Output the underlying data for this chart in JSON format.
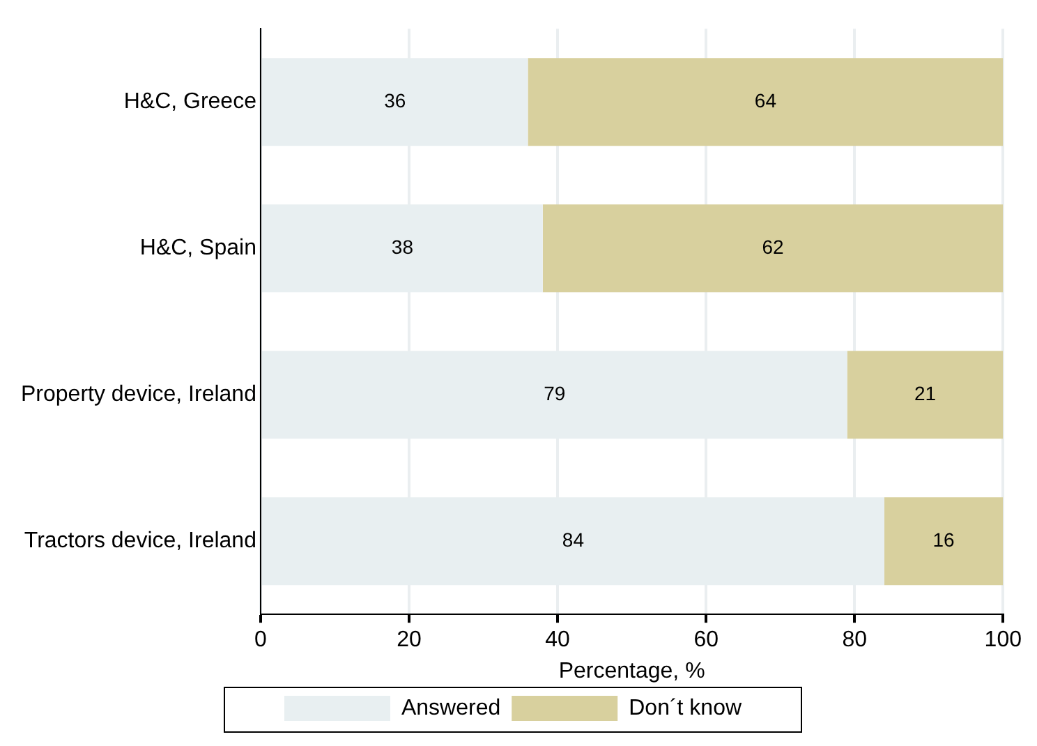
{
  "chart_data": {
    "type": "bar",
    "orientation": "horizontal",
    "stacked": true,
    "xlabel": "Percentage, %",
    "categories": [
      "H&C, Greece",
      "H&C, Spain",
      "Property device, Ireland",
      "Tractors device, Ireland"
    ],
    "series": [
      {
        "name": "Answered",
        "color": "#e8eff1",
        "values": [
          36,
          38,
          79,
          84
        ]
      },
      {
        "name": "Don´t know",
        "color": "#d8d09e",
        "values": [
          64,
          62,
          21,
          16
        ]
      }
    ],
    "xlim": [
      0,
      100
    ],
    "xticks": [
      0,
      20,
      40,
      60,
      80,
      100
    ],
    "grid": "x",
    "legend": "bottom",
    "data_labels": true
  }
}
